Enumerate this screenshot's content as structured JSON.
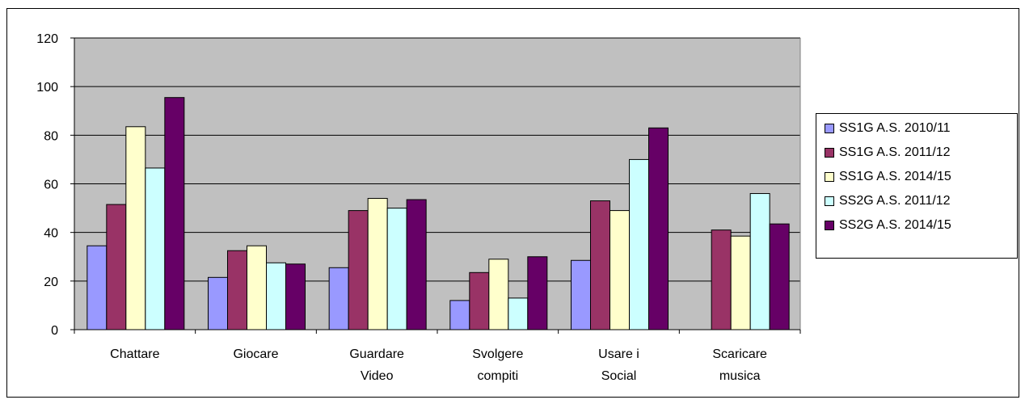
{
  "chart_data": {
    "type": "bar",
    "categories": [
      [
        "Chattare"
      ],
      [
        "Giocare"
      ],
      [
        "Guardare",
        "Video"
      ],
      [
        "Svolgere",
        "compiti"
      ],
      [
        "Usare i",
        "Social"
      ],
      [
        "Scaricare",
        "musica"
      ]
    ],
    "series": [
      {
        "name": "SS1G A.S. 2010/11",
        "color": "#9999ff",
        "values": [
          34.5,
          21.5,
          25.5,
          12,
          28.5,
          null
        ]
      },
      {
        "name": "SS1G A.S. 2011/12",
        "color": "#993366",
        "values": [
          51.5,
          32.5,
          49,
          23.5,
          53,
          41
        ]
      },
      {
        "name": "SS1G A.S. 2014/15",
        "color": "#ffffcc",
        "values": [
          83.5,
          34.5,
          54,
          29,
          49,
          38.5
        ]
      },
      {
        "name": "SS2G A.S. 2011/12",
        "color": "#ccffff",
        "values": [
          66.5,
          27.5,
          50,
          13,
          70,
          56
        ]
      },
      {
        "name": "SS2G A.S. 2014/15",
        "color": "#660066",
        "values": [
          95.5,
          27,
          53.5,
          30,
          83,
          43.5
        ]
      }
    ],
    "ylim": [
      0,
      120
    ],
    "yticks": [
      "0",
      "20",
      "40",
      "60",
      "80",
      "100",
      "120"
    ],
    "grid": true,
    "legend_position": "right",
    "plot_background": "#c0c0c0"
  }
}
